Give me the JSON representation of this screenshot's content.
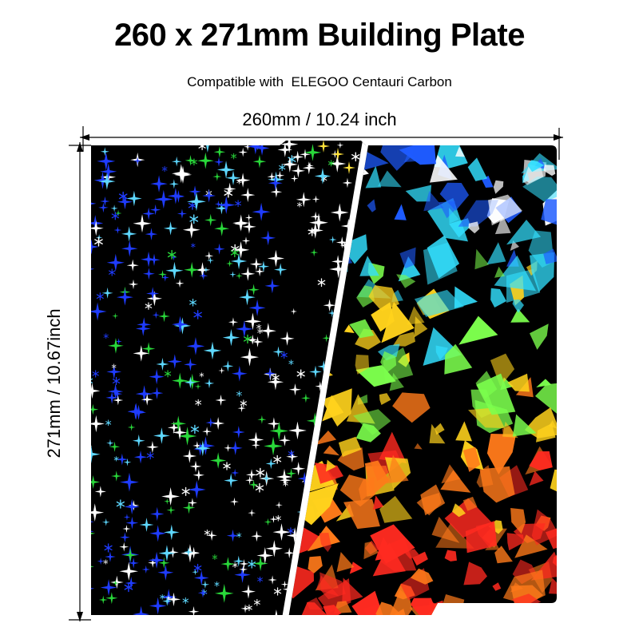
{
  "header": {
    "title": "260 x 271mm Building Plate",
    "subtitle": "Compatible with  ELEGOO Centauri Carbon"
  },
  "dimensions": {
    "width_label": "260mm / 10.24 inch",
    "height_label": "271mm / 10.67inch"
  },
  "plate": {
    "left_pattern": "holographic-stars",
    "right_pattern": "holographic-shards",
    "colors": {
      "background": "#000000",
      "star_light": "#ffffff",
      "star_cyan": "#5ed8ff",
      "star_blue": "#1f3cff",
      "star_green": "#29d83a",
      "star_yellow": "#ffe23a",
      "shard_blue": "#1e5bff",
      "shard_cyan": "#33e0ff",
      "shard_green": "#7cff4d",
      "shard_yellow": "#ffd21c",
      "shard_orange": "#ff7a1a",
      "shard_red": "#ff2a20"
    }
  }
}
